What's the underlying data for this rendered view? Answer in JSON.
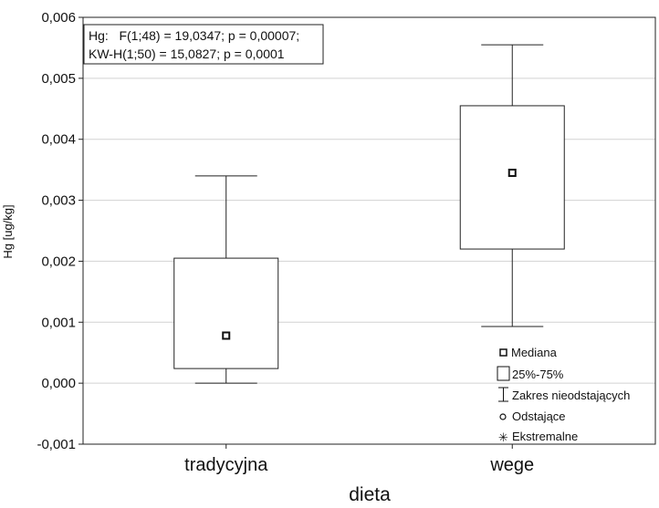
{
  "chart_data": {
    "type": "box",
    "xlabel": "dieta",
    "ylabel": "Hg [ug/kg]",
    "ylim": [
      -0.001,
      0.006
    ],
    "yticks": [
      -0.001,
      0.0,
      0.001,
      0.002,
      0.003,
      0.004,
      0.005,
      0.006
    ],
    "ytick_labels": [
      "-0,001",
      "0,000",
      "0,001",
      "0,002",
      "0,003",
      "0,004",
      "0,005",
      "0,006"
    ],
    "grid": true,
    "categories": [
      "tradycyjna",
      "wege"
    ],
    "boxes": [
      {
        "category": "tradycyjna",
        "whisker_low": 0.0,
        "q1": 0.00024,
        "median": 0.00078,
        "q3": 0.00205,
        "whisker_high": 0.0034
      },
      {
        "category": "wege",
        "whisker_low": 0.00093,
        "q1": 0.0022,
        "median": 0.00345,
        "q3": 0.00455,
        "whisker_high": 0.00555
      }
    ],
    "annotation": {
      "lines": [
        "Hg:   F(1;48) = 19,0347; p = 0,00007;",
        "KW-H(1;50) = 15,0827; p = 0,0001"
      ],
      "position": "top-left"
    },
    "legend": {
      "position": "bottom-right",
      "items": [
        {
          "symbol": "median-square",
          "label": "Mediana"
        },
        {
          "symbol": "box",
          "label": "25%-75%"
        },
        {
          "symbol": "whisker",
          "label": "Zakres nieodstających"
        },
        {
          "symbol": "circle",
          "label": "Odstające"
        },
        {
          "symbol": "asterisk",
          "label": "Ekstremalne"
        }
      ]
    }
  }
}
